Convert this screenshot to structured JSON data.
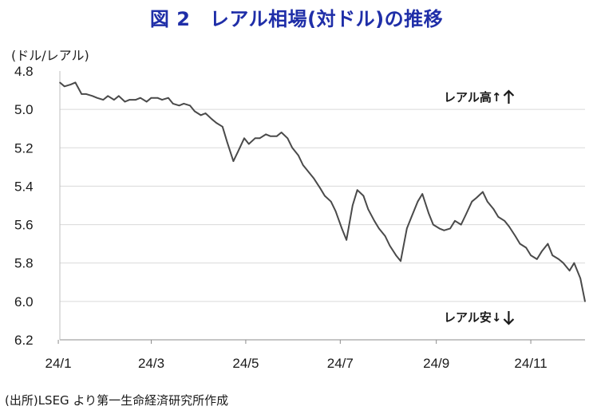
{
  "title": "図 2　レアル相場(対ドル)の推移",
  "unit_label": "(ドル/レアル)",
  "source": "(出所)LSEG より第一生命経済研究所作成",
  "colors": {
    "title": "#1f2ea8",
    "line": "#4a4a4a",
    "grid": "#d9d9d9",
    "axis": "#8c8c8c"
  },
  "chart_data": {
    "type": "line",
    "title": "図 2　レアル相場(対ドル)の推移",
    "ylabel": "(ドル/レアル)",
    "xlabel": "",
    "y_inverted": true,
    "ylim": [
      4.8,
      6.2
    ],
    "xlim": [
      "2024-01-02",
      "2024-12-06"
    ],
    "yticks": [
      4.8,
      5.0,
      5.2,
      5.4,
      5.6,
      5.8,
      6.0,
      6.2
    ],
    "ytick_labels": [
      "4.8",
      "5.0",
      "5.2",
      "5.4",
      "5.6",
      "5.8",
      "6.0",
      "6.2"
    ],
    "xticks": [
      "2024-01-01",
      "2024-03-01",
      "2024-05-01",
      "2024-07-01",
      "2024-09-01",
      "2024-11-01"
    ],
    "xtick_labels": [
      "24/1",
      "24/3",
      "24/5",
      "24/7",
      "24/9",
      "24/11"
    ],
    "grid": "horizontal",
    "annotations": [
      "レアル高↑",
      "レアル安↓"
    ],
    "series": [
      {
        "x": [
          "2024-01-02",
          "2024-01-05",
          "2024-01-09",
          "2024-01-12",
          "2024-01-16",
          "2024-01-19",
          "2024-01-23",
          "2024-01-26",
          "2024-01-30",
          "2024-02-02",
          "2024-02-06",
          "2024-02-09",
          "2024-02-13",
          "2024-02-16",
          "2024-02-20",
          "2024-02-23",
          "2024-02-27",
          "2024-03-01",
          "2024-03-05",
          "2024-03-08",
          "2024-03-12",
          "2024-03-15",
          "2024-03-19",
          "2024-03-22",
          "2024-03-26",
          "2024-03-29",
          "2024-04-02",
          "2024-04-05",
          "2024-04-09",
          "2024-04-12",
          "2024-04-16",
          "2024-04-19",
          "2024-04-23",
          "2024-04-26",
          "2024-04-30",
          "2024-05-03",
          "2024-05-07",
          "2024-05-10",
          "2024-05-14",
          "2024-05-17",
          "2024-05-21",
          "2024-05-24",
          "2024-05-28",
          "2024-05-31",
          "2024-06-04",
          "2024-06-07",
          "2024-06-11",
          "2024-06-14",
          "2024-06-18",
          "2024-06-21",
          "2024-06-25",
          "2024-06-28",
          "2024-07-02",
          "2024-07-05",
          "2024-07-09",
          "2024-07-12",
          "2024-07-16",
          "2024-07-19",
          "2024-07-23",
          "2024-07-26",
          "2024-07-30",
          "2024-08-02",
          "2024-08-06",
          "2024-08-09",
          "2024-08-13",
          "2024-08-16",
          "2024-08-20",
          "2024-08-23",
          "2024-08-27",
          "2024-08-30",
          "2024-09-03",
          "2024-09-06",
          "2024-09-10",
          "2024-09-13",
          "2024-09-17",
          "2024-09-20",
          "2024-09-24",
          "2024-09-27",
          "2024-10-01",
          "2024-10-04",
          "2024-10-08",
          "2024-10-11",
          "2024-10-15",
          "2024-10-18",
          "2024-10-22",
          "2024-10-25",
          "2024-10-29",
          "2024-11-01",
          "2024-11-05",
          "2024-11-08",
          "2024-11-12",
          "2024-11-15",
          "2024-11-19",
          "2024-11-22",
          "2024-11-26",
          "2024-11-29",
          "2024-12-03",
          "2024-12-06"
        ],
        "values": [
          4.86,
          4.88,
          4.87,
          4.86,
          4.92,
          4.92,
          4.93,
          4.94,
          4.95,
          4.93,
          4.95,
          4.93,
          4.96,
          4.95,
          4.95,
          4.94,
          4.96,
          4.94,
          4.94,
          4.95,
          4.94,
          4.97,
          4.98,
          4.97,
          4.98,
          5.01,
          5.03,
          5.02,
          5.05,
          5.07,
          5.09,
          5.17,
          5.27,
          5.22,
          5.15,
          5.18,
          5.15,
          5.15,
          5.13,
          5.14,
          5.14,
          5.12,
          5.15,
          5.2,
          5.24,
          5.29,
          5.33,
          5.36,
          5.41,
          5.45,
          5.48,
          5.53,
          5.62,
          5.68,
          5.5,
          5.42,
          5.45,
          5.52,
          5.58,
          5.62,
          5.66,
          5.71,
          5.76,
          5.79,
          5.62,
          5.56,
          5.48,
          5.44,
          5.54,
          5.6,
          5.62,
          5.63,
          5.62,
          5.58,
          5.6,
          5.55,
          5.48,
          5.46,
          5.43,
          5.48,
          5.52,
          5.56,
          5.58,
          5.61,
          5.66,
          5.7,
          5.72,
          5.76,
          5.78,
          5.74,
          5.7,
          5.76,
          5.78,
          5.8,
          5.84,
          5.8,
          5.88,
          6.0
        ]
      }
    ]
  }
}
